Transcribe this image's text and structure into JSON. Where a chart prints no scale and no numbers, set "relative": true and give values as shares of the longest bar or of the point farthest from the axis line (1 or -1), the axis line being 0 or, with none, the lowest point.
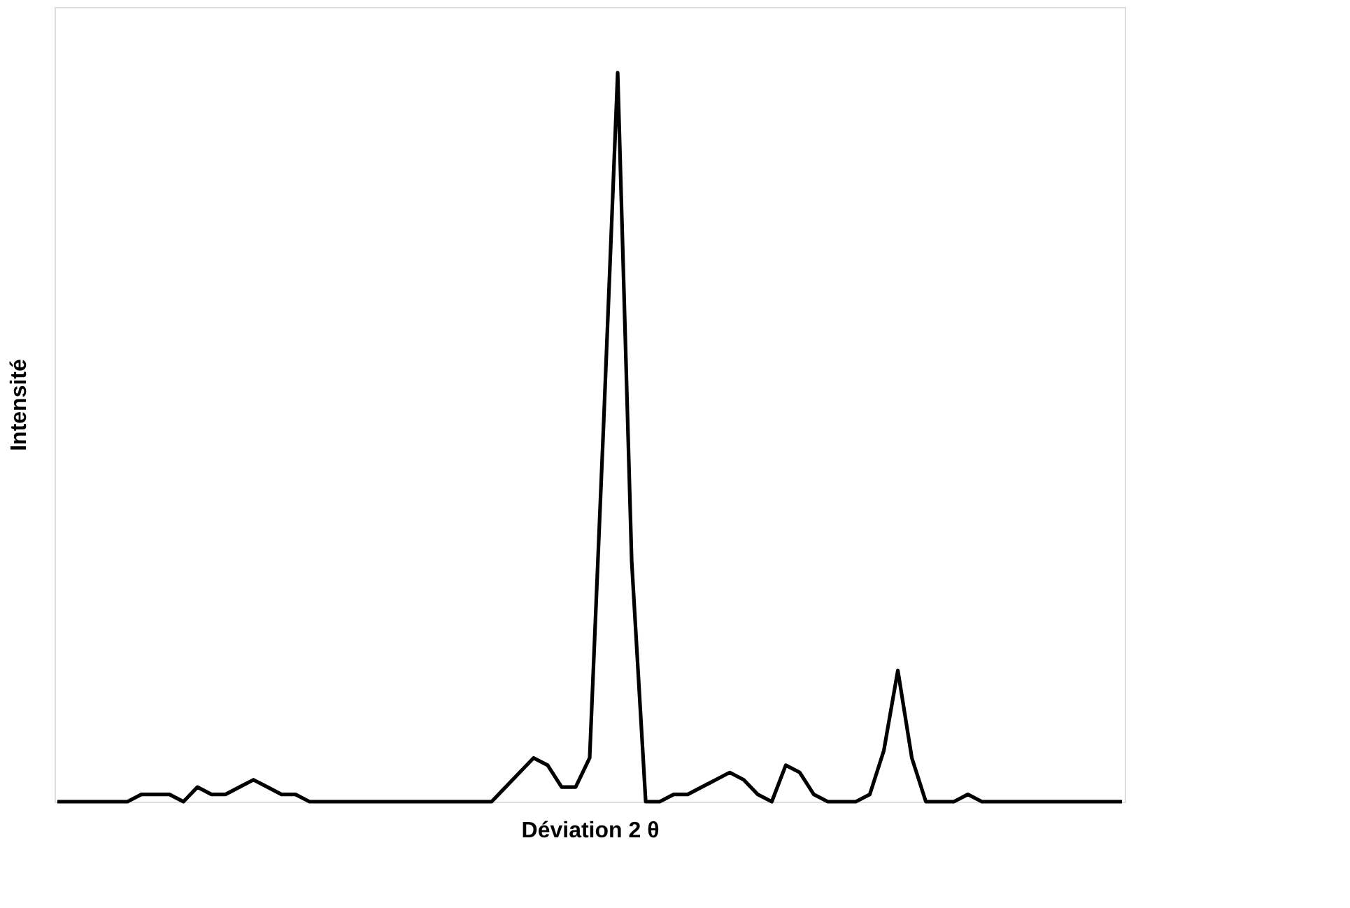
{
  "chart_data": {
    "type": "line",
    "relative": true,
    "xlabel": "Déviation 2 θ",
    "ylabel": "Intensité",
    "tick_labels": false,
    "grid": false,
    "legend": false,
    "marker": "none",
    "line_style": "solid",
    "categories": [
      null,
      null,
      null,
      null,
      null,
      null,
      null,
      null,
      null,
      null,
      null,
      null,
      null,
      null,
      null,
      null,
      null,
      null,
      null,
      null,
      null,
      null,
      null,
      null,
      null,
      null,
      null,
      null,
      null,
      null,
      null,
      null,
      null,
      null,
      null,
      null,
      null,
      null,
      null,
      null,
      null,
      null,
      null,
      null,
      null,
      null,
      null,
      null,
      null,
      null,
      null,
      null,
      null,
      null,
      null,
      null,
      null,
      null,
      null,
      null,
      null,
      null,
      null,
      null,
      null,
      null,
      null,
      null,
      null,
      null,
      null,
      null,
      null,
      null,
      null,
      null,
      null
    ],
    "series": [
      {
        "color": "#000000",
        "values": [
          0,
          0,
          0,
          0,
          0,
          0,
          0.01,
          0.01,
          0.01,
          0,
          0.02,
          0.01,
          0.01,
          0.02,
          0.03,
          0.02,
          0.01,
          0.01,
          0,
          0,
          0,
          0,
          0,
          0,
          0,
          0,
          0,
          0,
          0,
          0,
          0,
          0,
          0.02,
          0.04,
          0.06,
          0.05,
          0.02,
          0.02,
          0.06,
          0.52,
          1,
          0.33,
          0,
          0,
          0.01,
          0.01,
          0.02,
          0.03,
          0.04,
          0.03,
          0.01,
          0,
          0.05,
          0.04,
          0.01,
          0,
          0,
          0,
          0.01,
          0.07,
          0.18,
          0.06,
          0,
          0,
          0,
          0.01,
          0,
          0,
          0,
          0,
          0,
          0,
          0,
          0,
          0,
          0,
          0
        ]
      }
    ]
  }
}
